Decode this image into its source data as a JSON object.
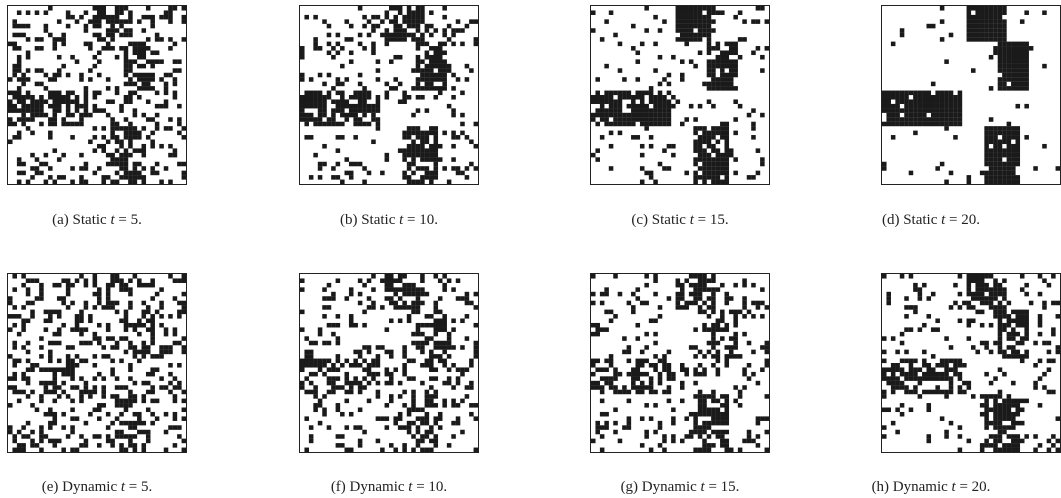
{
  "figure": {
    "grid_size": 40,
    "panels": [
      {
        "id": "a",
        "label": "(a) Static ",
        "var": "t",
        "eq": " = 5.",
        "mode": "static",
        "t": 5
      },
      {
        "id": "b",
        "label": "(b) Static ",
        "var": "t",
        "eq": " = 10.",
        "mode": "static",
        "t": 10
      },
      {
        "id": "c",
        "label": "(c) Static ",
        "var": "t",
        "eq": " = 15.",
        "mode": "static",
        "t": 15
      },
      {
        "id": "d",
        "label": "(d) Static ",
        "var": "t",
        "eq": " = 20.",
        "mode": "static",
        "t": 20
      },
      {
        "id": "e",
        "label": "(e) Dynamic ",
        "var": "t",
        "eq": " = 5.",
        "mode": "dynamic",
        "t": 5
      },
      {
        "id": "f",
        "label": "(f) Dynamic ",
        "var": "t",
        "eq": " = 10.",
        "mode": "dynamic",
        "t": 10
      },
      {
        "id": "g",
        "label": "(g) Dynamic ",
        "var": "t",
        "eq": " = 15.",
        "mode": "dynamic",
        "t": 15
      },
      {
        "id": "h",
        "label": "(h) Dynamic ",
        "var": "t",
        "eq": " = 20.",
        "mode": "dynamic",
        "t": 20
      }
    ],
    "cell_color": "#1a1a1a",
    "border_color": "#222222"
  }
}
